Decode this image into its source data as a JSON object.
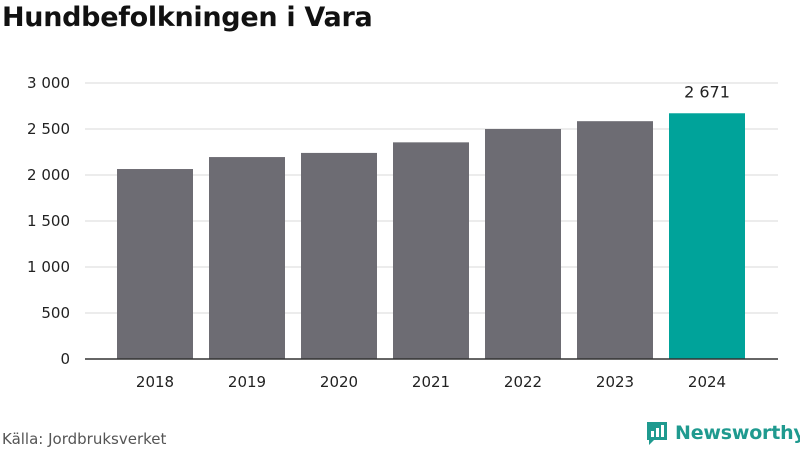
{
  "title": "Hundbefolkningen i Vara",
  "source": "Källa: Jordbruksverket",
  "brand": "Newsworthy",
  "colors": {
    "bar": "#6d6c73",
    "highlight": "#00a39a",
    "grid": "#d9d9d9",
    "axis": "#333333",
    "brand": "#1f9a8f"
  },
  "chart_data": {
    "type": "bar",
    "categories": [
      "2018",
      "2019",
      "2020",
      "2021",
      "2022",
      "2023",
      "2024"
    ],
    "values": [
      2065,
      2195,
      2240,
      2355,
      2500,
      2585,
      2671
    ],
    "highlight_index": 6,
    "value_labels": {
      "6": "2 671"
    },
    "ylim": [
      0,
      3000
    ],
    "yticks": [
      0,
      500,
      1000,
      1500,
      2000,
      2500,
      3000
    ],
    "ytick_labels": [
      "0",
      "500",
      "1 000",
      "1 500",
      "2 000",
      "2 500",
      "3 000"
    ],
    "grid": true,
    "xlabel": "",
    "ylabel": ""
  }
}
